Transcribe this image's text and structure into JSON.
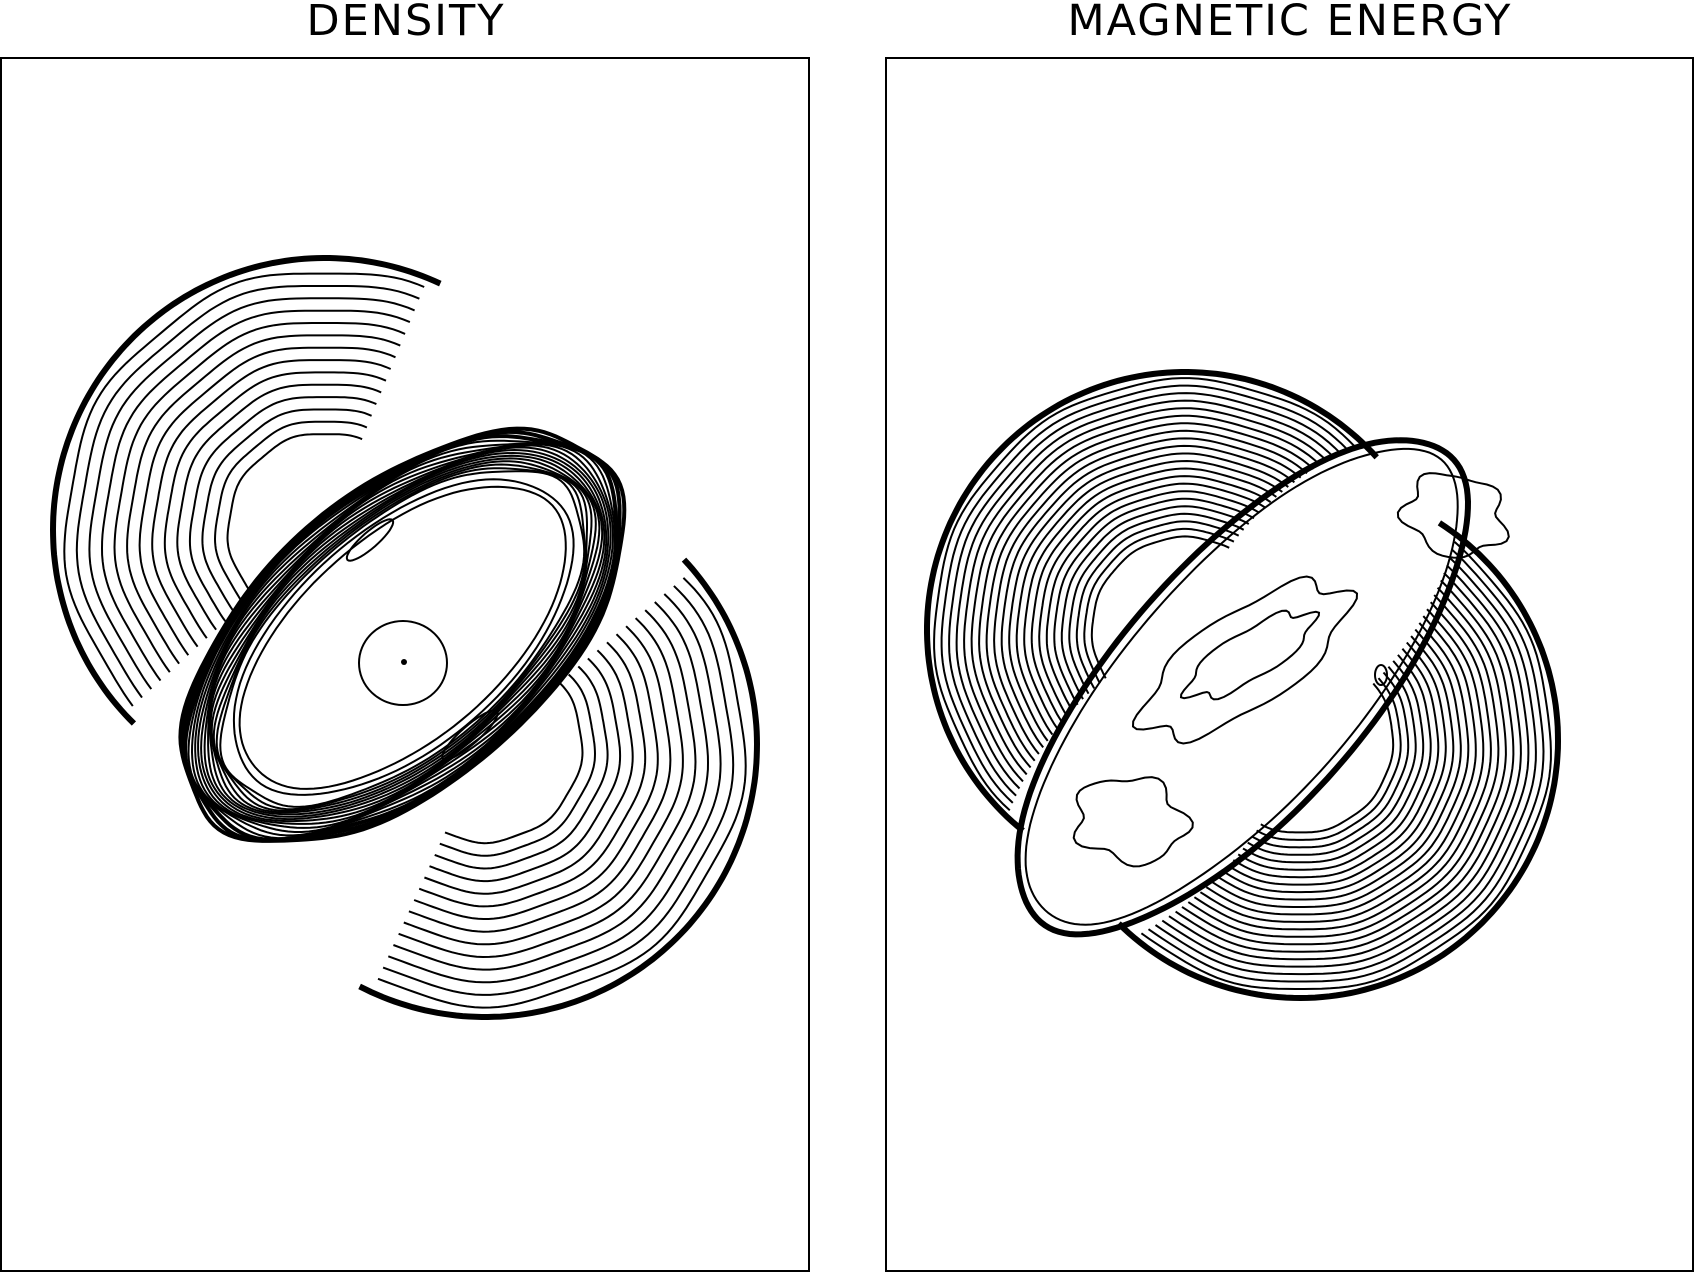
{
  "chart_data": [
    {
      "type": "contour",
      "title": "DENSITY"
    },
    {
      "type": "contour",
      "title": "MAGNETIC ENERGY"
    }
  ]
}
